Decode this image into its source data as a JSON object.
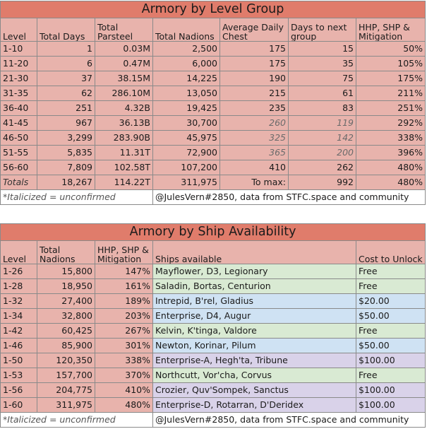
{
  "level_table": {
    "title": "Armory by Level Group",
    "headers": [
      "Level",
      "Total Days",
      "Total Parsteel",
      "Total Nadions",
      "Average Daily Chest",
      "Days to next group",
      "HHP, SHP & Mitigation"
    ],
    "rows": [
      {
        "level": "1-10",
        "days": "1",
        "parsteel": "0.03M",
        "nadions": "2,500",
        "chest": "175",
        "next": "15",
        "mit": "50%",
        "unconfirmed": false
      },
      {
        "level": "11-20",
        "days": "6",
        "parsteel": "0.47M",
        "nadions": "6,000",
        "chest": "175",
        "next": "35",
        "mit": "105%",
        "unconfirmed": false
      },
      {
        "level": "21-30",
        "days": "37",
        "parsteel": "38.15M",
        "nadions": "14,225",
        "chest": "190",
        "next": "75",
        "mit": "175%",
        "unconfirmed": false
      },
      {
        "level": "31-35",
        "days": "62",
        "parsteel": "286.10M",
        "nadions": "13,050",
        "chest": "215",
        "next": "61",
        "mit": "211%",
        "unconfirmed": false
      },
      {
        "level": "36-40",
        "days": "251",
        "parsteel": "4.32B",
        "nadions": "19,425",
        "chest": "235",
        "next": "83",
        "mit": "251%",
        "unconfirmed": false
      },
      {
        "level": "41-45",
        "days": "967",
        "parsteel": "36.13B",
        "nadions": "30,700",
        "chest": "260",
        "next": "119",
        "mit": "292%",
        "unconfirmed": true
      },
      {
        "level": "46-50",
        "days": "3,299",
        "parsteel": "283.90B",
        "nadions": "45,975",
        "chest": "325",
        "next": "142",
        "mit": "338%",
        "unconfirmed": true
      },
      {
        "level": "51-55",
        "days": "5,835",
        "parsteel": "11.31T",
        "nadions": "72,900",
        "chest": "365",
        "next": "200",
        "mit": "396%",
        "unconfirmed": true
      },
      {
        "level": "56-60",
        "days": "7,809",
        "parsteel": "102.58T",
        "nadions": "107,200",
        "chest": "410",
        "next": "262",
        "mit": "480%",
        "unconfirmed": false
      }
    ],
    "totals": {
      "label": "Totals",
      "days": "18,267",
      "parsteel": "114.22T",
      "nadions": "311,975",
      "to_max_label": "To max:",
      "next": "992",
      "mit": "480%"
    },
    "note": "*Italicized = unconfirmed",
    "credit": "@JulesVern#2850, data from STFC.space and community"
  },
  "ship_table": {
    "title": "Armory by Ship Availability",
    "headers": [
      "Level",
      "Total Nadions",
      "HHP, SHP & Mitigation",
      "Ships available",
      "Cost to Unlock"
    ],
    "rows": [
      {
        "level": "1-26",
        "nadions": "15,800",
        "mit": "147%",
        "ships": "Mayflower, D3, Legionary",
        "cost": "Free",
        "tier": "free"
      },
      {
        "level": "1-28",
        "nadions": "18,950",
        "mit": "161%",
        "ships": "Saladin, Bortas, Centurion",
        "cost": "Free",
        "tier": "free"
      },
      {
        "level": "1-32",
        "nadions": "27,400",
        "mit": "189%",
        "ships": "Intrepid, B'rel, Gladius",
        "cost": "$20.00",
        "tier": "20"
      },
      {
        "level": "1-34",
        "nadions": "32,800",
        "mit": "203%",
        "ships": "Enterprise, D4, Augur",
        "cost": "$50.00",
        "tier": "50"
      },
      {
        "level": "1-42",
        "nadions": "60,425",
        "mit": "267%",
        "ships": "Kelvin, K'tinga, Valdore",
        "cost": "Free",
        "tier": "free"
      },
      {
        "level": "1-46",
        "nadions": "85,900",
        "mit": "301%",
        "ships": "Newton, Korinar, Pilum",
        "cost": "$50.00",
        "tier": "50"
      },
      {
        "level": "1-50",
        "nadions": "120,350",
        "mit": "338%",
        "ships": "Enterprise-A, Hegh'ta, Tribune",
        "cost": "$100.00",
        "tier": "100"
      },
      {
        "level": "1-53",
        "nadions": "157,700",
        "mit": "370%",
        "ships": "Northcutt, Vor'cha, Corvus",
        "cost": "Free",
        "tier": "free"
      },
      {
        "level": "1-56",
        "nadions": "204,775",
        "mit": "410%",
        "ships": "Crozier, Quv'Sompek, Sanctus",
        "cost": "$100.00",
        "tier": "100"
      },
      {
        "level": "1-60",
        "nadions": "311,975",
        "mit": "480%",
        "ships": "Enterprise-D, Rotarran, D'Deridex",
        "cost": "$100.00",
        "tier": "100"
      }
    ],
    "note": "*Italicized = unconfirmed",
    "credit": "@JulesVern#2850, data from STFC.space and community"
  }
}
